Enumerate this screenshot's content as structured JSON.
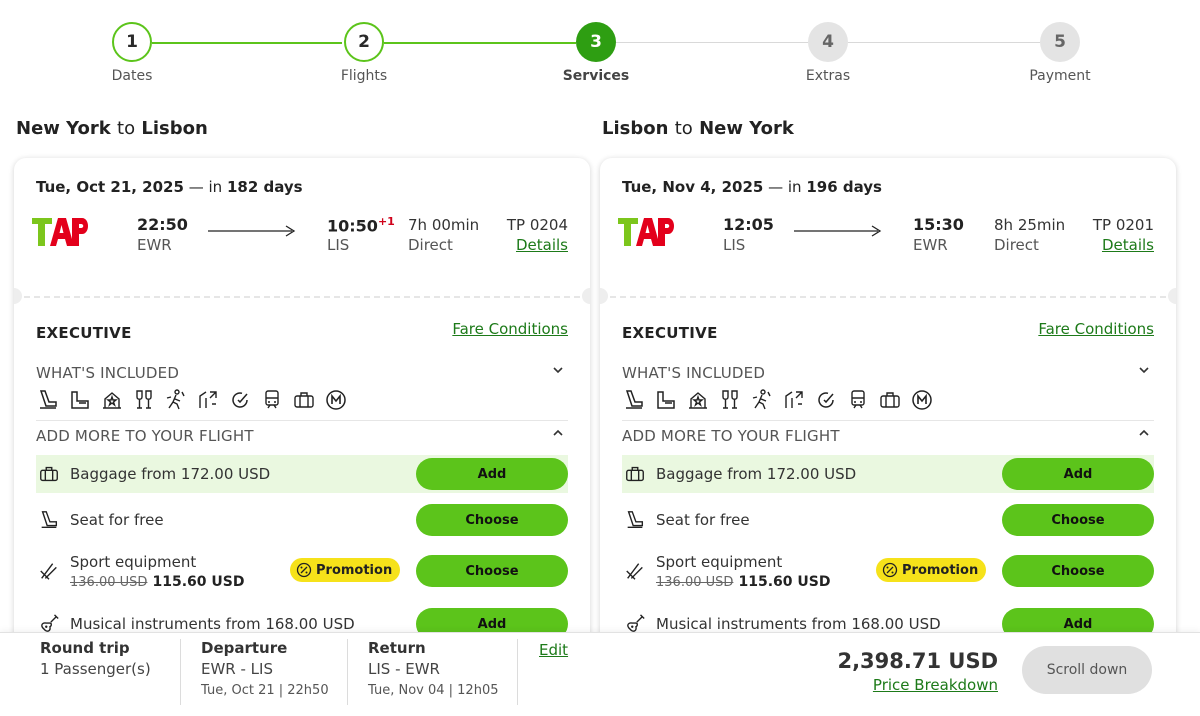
{
  "stepper": {
    "steps": [
      {
        "num": "1",
        "label": "Dates",
        "state": "done"
      },
      {
        "num": "2",
        "label": "Flights",
        "state": "done"
      },
      {
        "num": "3",
        "label": "Services",
        "state": "active"
      },
      {
        "num": "4",
        "label": "Extras",
        "state": "todo"
      },
      {
        "num": "5",
        "label": "Payment",
        "state": "todo"
      }
    ]
  },
  "outbound": {
    "from_city": "New York",
    "to_word": "to",
    "to_city": "Lisbon",
    "date": "Tue, Oct 21, 2025",
    "in_text": "— in",
    "days": "182 days",
    "dep_time": "22:50",
    "dep_code": "EWR",
    "arr_time": "10:50",
    "arr_plus": "+1",
    "arr_code": "LIS",
    "duration": "7h 00min",
    "stops": "Direct",
    "flight_no": "TP 0204",
    "details": "Details",
    "fare": "EXECUTIVE",
    "fare_conditions": "Fare Conditions",
    "whats_included": "WHAT'S INCLUDED",
    "add_more": "ADD MORE TO YOUR FLIGHT",
    "baggage": "Baggage from 172.00 USD",
    "baggage_btn": "Add",
    "seat": "Seat for free",
    "seat_btn": "Choose",
    "sport": "Sport equipment",
    "sport_old": "136.00 USD",
    "sport_new": "115.60 USD",
    "promo": "Promotion",
    "sport_btn": "Choose",
    "music": "Musical instruments from 168.00 USD",
    "music_btn": "Add"
  },
  "inbound": {
    "from_city": "Lisbon",
    "to_word": "to",
    "to_city": "New York",
    "date": "Tue, Nov 4, 2025",
    "in_text": "— in",
    "days": "196 days",
    "dep_time": "12:05",
    "dep_code": "LIS",
    "arr_time": "15:30",
    "arr_code": "EWR",
    "duration": "8h 25min",
    "stops": "Direct",
    "flight_no": "TP 0201",
    "details": "Details",
    "fare": "EXECUTIVE",
    "fare_conditions": "Fare Conditions",
    "whats_included": "WHAT'S INCLUDED",
    "add_more": "ADD MORE TO YOUR FLIGHT",
    "baggage": "Baggage from 172.00 USD",
    "baggage_btn": "Add",
    "seat": "Seat for free",
    "seat_btn": "Choose",
    "sport": "Sport equipment",
    "sport_old": "136.00 USD",
    "sport_new": "115.60 USD",
    "promo": "Promotion",
    "sport_btn": "Choose",
    "music": "Musical instruments from 168.00 USD",
    "music_btn": "Add"
  },
  "summary": {
    "trip_type": "Round trip",
    "passengers": "1 Passenger(s)",
    "departure_label": "Departure",
    "departure_route": "EWR - LIS",
    "departure_when": "Tue, Oct 21 | 22h50",
    "return_label": "Return",
    "return_route": "LIS - EWR",
    "return_when": "Tue, Nov 04 | 12h05",
    "edit": "Edit",
    "total": "2,398.71 USD",
    "breakdown": "Price Breakdown",
    "scroll_btn": "Scroll down"
  },
  "colors": {
    "accent_green": "#5cc41b",
    "active_step": "#2e9e12",
    "link_green": "#1d7a19",
    "promo_yellow": "#f6e21a",
    "tap_red": "#e3001b"
  },
  "included_icons": [
    "seat-icon",
    "lounge-icon",
    "priority-icon",
    "meal-drink-icon",
    "priority-boarding-icon",
    "fast-track-icon",
    "miles-icon",
    "train-icon",
    "baggage-icon",
    "miles-m-icon"
  ]
}
